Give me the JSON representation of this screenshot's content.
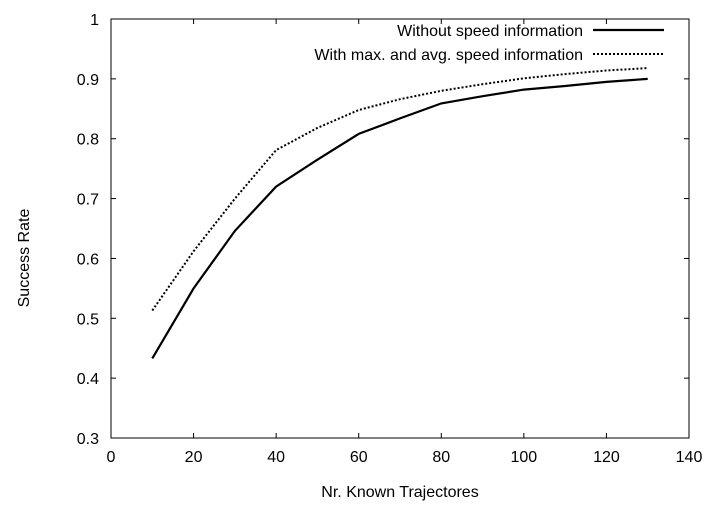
{
  "chart_data": {
    "type": "line",
    "title": "",
    "xlabel": "Nr. Known Trajectores",
    "ylabel": "Success Rate",
    "xlim": [
      0,
      140
    ],
    "ylim": [
      0.3,
      1.0
    ],
    "x_ticks": [
      "0",
      "20",
      "40",
      "60",
      "80",
      "100",
      "120",
      "140"
    ],
    "y_ticks": [
      "0.3",
      "0.4",
      "0.5",
      "0.6",
      "0.7",
      "0.8",
      "0.9",
      "1"
    ],
    "grid": false,
    "legend_position": "top-right",
    "series": [
      {
        "name": "Without speed information",
        "style": "solid",
        "x": [
          10,
          20,
          30,
          40,
          50,
          60,
          70,
          80,
          90,
          100,
          110,
          120,
          130
        ],
        "y": [
          0.433,
          0.55,
          0.646,
          0.72,
          0.765,
          0.808,
          0.834,
          0.859,
          0.871,
          0.882,
          0.888,
          0.895,
          0.9
        ]
      },
      {
        "name": "With max. and avg. speed information",
        "style": "dotted",
        "x": [
          10,
          20,
          30,
          40,
          50,
          60,
          70,
          80,
          90,
          100,
          110,
          120,
          130
        ],
        "y": [
          0.513,
          0.612,
          0.7,
          0.781,
          0.818,
          0.848,
          0.866,
          0.88,
          0.891,
          0.901,
          0.908,
          0.914,
          0.918
        ]
      }
    ],
    "colors": {
      "line": "#000000",
      "axis": "#000000",
      "background": "#ffffff"
    }
  }
}
